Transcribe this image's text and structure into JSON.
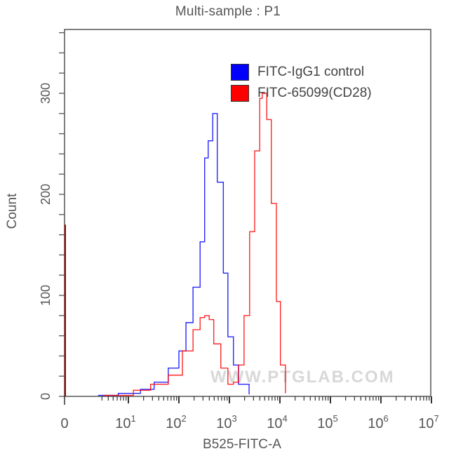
{
  "chart_data": {
    "type": "line",
    "subtype": "flow-cytometry-histogram-overlay",
    "title": "Multi-sample : P1",
    "xlabel": "B525-FITC-A",
    "ylabel": "Count",
    "xscale": "log (biexponential, with 0)",
    "x_ticks": [
      "0",
      "10^1",
      "10^2",
      "10^3",
      "10^4",
      "10^5",
      "10^6",
      "10^7"
    ],
    "y_ticks": [
      0,
      100,
      200,
      300
    ],
    "ylim": [
      0,
      360
    ],
    "grid": false,
    "legend_position": "upper right (inside)",
    "watermark": "WWW.PTGLAB.COM",
    "series": [
      {
        "name": "FITC-IgG1 control",
        "color": "#0000ff",
        "points_log10x_count": [
          [
            0.4,
            1
          ],
          [
            0.8,
            3
          ],
          [
            1.24,
            7
          ],
          [
            1.51,
            14
          ],
          [
            1.79,
            28
          ],
          [
            2.0,
            45
          ],
          [
            2.14,
            73
          ],
          [
            2.28,
            108
          ],
          [
            2.42,
            153
          ],
          [
            2.51,
            236
          ],
          [
            2.58,
            253
          ],
          [
            2.67,
            280
          ],
          [
            2.76,
            212
          ],
          [
            2.88,
            122
          ],
          [
            2.97,
            59
          ],
          [
            3.08,
            31
          ],
          [
            3.18,
            12
          ],
          [
            3.39,
            2
          ]
        ],
        "peak": {
          "x": "~10^2.7",
          "count": 280
        }
      },
      {
        "name": "FITC-65099(CD28)",
        "color": "#ff0000",
        "zero_bin_count": 170,
        "points_log10x_count": [
          [
            0.5,
            1
          ],
          [
            1.1,
            6
          ],
          [
            1.44,
            12
          ],
          [
            1.79,
            21
          ],
          [
            2.07,
            45
          ],
          [
            2.28,
            66
          ],
          [
            2.42,
            78
          ],
          [
            2.51,
            80
          ],
          [
            2.6,
            76
          ],
          [
            2.69,
            52
          ],
          [
            2.83,
            28
          ],
          [
            2.97,
            12
          ],
          [
            3.08,
            14
          ],
          [
            3.18,
            31
          ],
          [
            3.29,
            80
          ],
          [
            3.4,
            163
          ],
          [
            3.5,
            243
          ],
          [
            3.6,
            295
          ],
          [
            3.65,
            300
          ],
          [
            3.74,
            274
          ],
          [
            3.83,
            191
          ],
          [
            3.93,
            94
          ],
          [
            4.01,
            31
          ],
          [
            4.11,
            3
          ]
        ],
        "peak": {
          "x": "~10^3.65",
          "count": 300
        }
      }
    ]
  },
  "labels": {
    "title": "Multi-sample : P1",
    "xlabel": "B525-FITC-A",
    "ylabel": "Count",
    "watermark": "WWW.PTGLAB.COM"
  },
  "legend": [
    {
      "label": "FITC-IgG1 control",
      "color": "#0000ff"
    },
    {
      "label": "FITC-65099(CD28)",
      "color": "#ff0000"
    }
  ],
  "y_tick_labels": [
    "0",
    "100",
    "200",
    "300"
  ],
  "x_tick_labels": [
    {
      "base": "0",
      "exp": ""
    },
    {
      "base": "10",
      "exp": "1"
    },
    {
      "base": "10",
      "exp": "2"
    },
    {
      "base": "10",
      "exp": "3"
    },
    {
      "base": "10",
      "exp": "4"
    },
    {
      "base": "10",
      "exp": "5"
    },
    {
      "base": "10",
      "exp": "6"
    },
    {
      "base": "10",
      "exp": "7"
    }
  ]
}
